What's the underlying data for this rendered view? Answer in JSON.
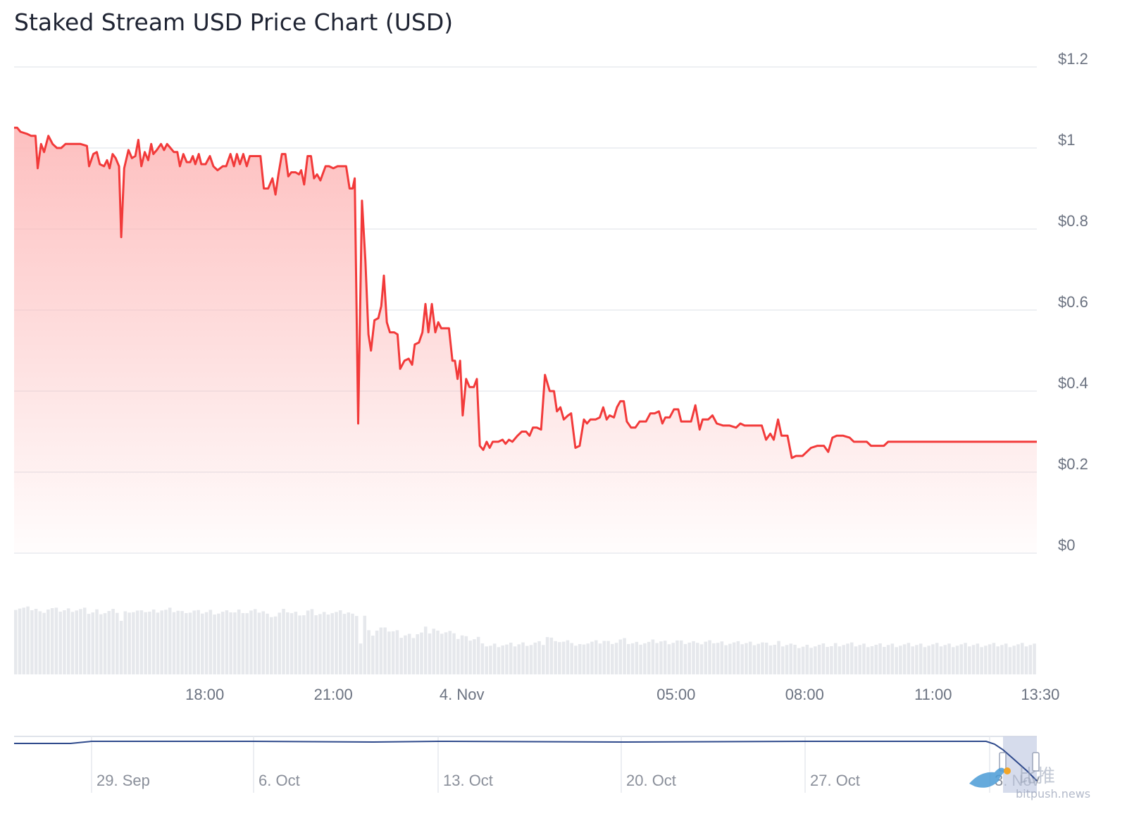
{
  "colors": {
    "price_line": "#f23a3a",
    "area_top": "#fdb8b8",
    "grid": "#e8ebef",
    "volume": "#e6e8ec",
    "navigator_line": "#2f4a8c",
    "navigator_mask": "#c5cde4",
    "axis_text": "#6b7280"
  },
  "chart_data": {
    "type": "line",
    "title": "Staked Stream USD Price Chart (USD)",
    "y_ticks": [
      "$1.2",
      "$1",
      "$0.8",
      "$0.6",
      "$0.4",
      "$0.2",
      "$0"
    ],
    "ylim": [
      0,
      1.2
    ],
    "x_ticks": [
      "18:00",
      "21:00",
      "4. Nov",
      "05:00",
      "08:00",
      "11:00",
      "13:30"
    ],
    "x_tick_hours": [
      18,
      21,
      24,
      29,
      32,
      35,
      37.5
    ],
    "xlim_hours": [
      13.55,
      37.42
    ],
    "series": [
      {
        "values": [
          [
            13.55,
            1.05
          ],
          [
            13.62,
            1.05
          ],
          [
            13.7,
            1.04
          ],
          [
            13.85,
            1.035
          ],
          [
            13.95,
            1.03
          ],
          [
            14.05,
            1.03
          ],
          [
            14.1,
            0.95
          ],
          [
            14.18,
            1.01
          ],
          [
            14.25,
            0.99
          ],
          [
            14.35,
            1.03
          ],
          [
            14.45,
            1.01
          ],
          [
            14.55,
            1.0
          ],
          [
            14.65,
            1.0
          ],
          [
            14.75,
            1.01
          ],
          [
            14.9,
            1.01
          ],
          [
            15.1,
            1.01
          ],
          [
            15.25,
            1.005
          ],
          [
            15.3,
            0.955
          ],
          [
            15.4,
            0.985
          ],
          [
            15.48,
            0.99
          ],
          [
            15.55,
            0.96
          ],
          [
            15.65,
            0.955
          ],
          [
            15.72,
            0.97
          ],
          [
            15.78,
            0.95
          ],
          [
            15.85,
            0.985
          ],
          [
            15.92,
            0.975
          ],
          [
            16.0,
            0.955
          ],
          [
            16.05,
            0.78
          ],
          [
            16.12,
            0.95
          ],
          [
            16.22,
            0.995
          ],
          [
            16.3,
            0.975
          ],
          [
            16.38,
            0.98
          ],
          [
            16.45,
            1.02
          ],
          [
            16.52,
            0.955
          ],
          [
            16.6,
            0.99
          ],
          [
            16.68,
            0.97
          ],
          [
            16.75,
            1.01
          ],
          [
            16.8,
            0.985
          ],
          [
            16.88,
            0.995
          ],
          [
            16.98,
            1.01
          ],
          [
            17.05,
            0.995
          ],
          [
            17.12,
            1.01
          ],
          [
            17.2,
            1.0
          ],
          [
            17.28,
            0.99
          ],
          [
            17.36,
            0.99
          ],
          [
            17.42,
            0.955
          ],
          [
            17.5,
            0.985
          ],
          [
            17.58,
            0.965
          ],
          [
            17.66,
            0.965
          ],
          [
            17.72,
            0.98
          ],
          [
            17.78,
            0.96
          ],
          [
            17.86,
            0.985
          ],
          [
            17.92,
            0.96
          ],
          [
            18.02,
            0.96
          ],
          [
            18.12,
            0.98
          ],
          [
            18.2,
            0.955
          ],
          [
            18.3,
            0.945
          ],
          [
            18.42,
            0.955
          ],
          [
            18.5,
            0.955
          ],
          [
            18.6,
            0.985
          ],
          [
            18.68,
            0.955
          ],
          [
            18.75,
            0.985
          ],
          [
            18.82,
            0.96
          ],
          [
            18.9,
            0.985
          ],
          [
            18.98,
            0.955
          ],
          [
            19.05,
            0.98
          ],
          [
            19.15,
            0.98
          ],
          [
            19.3,
            0.98
          ],
          [
            19.38,
            0.9
          ],
          [
            19.48,
            0.9
          ],
          [
            19.58,
            0.925
          ],
          [
            19.65,
            0.885
          ],
          [
            19.72,
            0.935
          ],
          [
            19.8,
            0.985
          ],
          [
            19.88,
            0.985
          ],
          [
            19.95,
            0.93
          ],
          [
            20.02,
            0.94
          ],
          [
            20.12,
            0.94
          ],
          [
            20.2,
            0.935
          ],
          [
            20.25,
            0.945
          ],
          [
            20.32,
            0.91
          ],
          [
            20.4,
            0.98
          ],
          [
            20.48,
            0.98
          ],
          [
            20.55,
            0.925
          ],
          [
            20.62,
            0.935
          ],
          [
            20.7,
            0.92
          ],
          [
            20.75,
            0.935
          ],
          [
            20.82,
            0.955
          ],
          [
            20.9,
            0.955
          ],
          [
            21.0,
            0.95
          ],
          [
            21.1,
            0.955
          ],
          [
            21.2,
            0.955
          ],
          [
            21.3,
            0.955
          ],
          [
            21.38,
            0.9
          ],
          [
            21.45,
            0.9
          ],
          [
            21.5,
            0.925
          ],
          [
            21.58,
            0.32
          ],
          [
            21.67,
            0.87
          ],
          [
            21.75,
            0.72
          ],
          [
            21.82,
            0.54
          ],
          [
            21.88,
            0.5
          ],
          [
            21.96,
            0.575
          ],
          [
            22.05,
            0.58
          ],
          [
            22.12,
            0.61
          ],
          [
            22.18,
            0.685
          ],
          [
            22.25,
            0.57
          ],
          [
            22.32,
            0.545
          ],
          [
            22.42,
            0.545
          ],
          [
            22.5,
            0.54
          ],
          [
            22.56,
            0.455
          ],
          [
            22.66,
            0.475
          ],
          [
            22.76,
            0.48
          ],
          [
            22.84,
            0.465
          ],
          [
            22.9,
            0.515
          ],
          [
            23.0,
            0.52
          ],
          [
            23.08,
            0.545
          ],
          [
            23.15,
            0.615
          ],
          [
            23.22,
            0.545
          ],
          [
            23.3,
            0.615
          ],
          [
            23.38,
            0.545
          ],
          [
            23.45,
            0.57
          ],
          [
            23.52,
            0.555
          ],
          [
            23.62,
            0.555
          ],
          [
            23.7,
            0.555
          ],
          [
            23.78,
            0.475
          ],
          [
            23.84,
            0.475
          ],
          [
            23.9,
            0.43
          ],
          [
            23.96,
            0.475
          ],
          [
            24.02,
            0.34
          ],
          [
            24.1,
            0.43
          ],
          [
            24.18,
            0.41
          ],
          [
            24.28,
            0.41
          ],
          [
            24.35,
            0.43
          ],
          [
            24.42,
            0.265
          ],
          [
            24.5,
            0.255
          ],
          [
            24.58,
            0.275
          ],
          [
            24.65,
            0.26
          ],
          [
            24.72,
            0.275
          ],
          [
            24.85,
            0.275
          ],
          [
            24.95,
            0.28
          ],
          [
            25.02,
            0.27
          ],
          [
            25.1,
            0.28
          ],
          [
            25.18,
            0.275
          ],
          [
            25.3,
            0.29
          ],
          [
            25.4,
            0.3
          ],
          [
            25.5,
            0.3
          ],
          [
            25.58,
            0.29
          ],
          [
            25.66,
            0.31
          ],
          [
            25.75,
            0.31
          ],
          [
            25.85,
            0.305
          ],
          [
            25.94,
            0.44
          ],
          [
            26.05,
            0.4
          ],
          [
            26.15,
            0.4
          ],
          [
            26.22,
            0.35
          ],
          [
            26.3,
            0.36
          ],
          [
            26.38,
            0.33
          ],
          [
            26.48,
            0.34
          ],
          [
            26.55,
            0.345
          ],
          [
            26.65,
            0.26
          ],
          [
            26.75,
            0.265
          ],
          [
            26.85,
            0.33
          ],
          [
            26.92,
            0.32
          ],
          [
            27.0,
            0.33
          ],
          [
            27.12,
            0.33
          ],
          [
            27.22,
            0.335
          ],
          [
            27.3,
            0.36
          ],
          [
            27.38,
            0.33
          ],
          [
            27.45,
            0.34
          ],
          [
            27.55,
            0.335
          ],
          [
            27.62,
            0.36
          ],
          [
            27.7,
            0.375
          ],
          [
            27.78,
            0.375
          ],
          [
            27.85,
            0.325
          ],
          [
            27.95,
            0.31
          ],
          [
            28.05,
            0.31
          ],
          [
            28.15,
            0.325
          ],
          [
            28.3,
            0.325
          ],
          [
            28.4,
            0.345
          ],
          [
            28.5,
            0.345
          ],
          [
            28.6,
            0.35
          ],
          [
            28.68,
            0.32
          ],
          [
            28.75,
            0.335
          ],
          [
            28.85,
            0.335
          ],
          [
            28.95,
            0.355
          ],
          [
            29.05,
            0.355
          ],
          [
            29.12,
            0.325
          ],
          [
            29.2,
            0.325
          ],
          [
            29.35,
            0.325
          ],
          [
            29.45,
            0.365
          ],
          [
            29.55,
            0.305
          ],
          [
            29.62,
            0.33
          ],
          [
            29.75,
            0.33
          ],
          [
            29.85,
            0.34
          ],
          [
            29.95,
            0.32
          ],
          [
            30.1,
            0.315
          ],
          [
            30.25,
            0.315
          ],
          [
            30.4,
            0.31
          ],
          [
            30.5,
            0.32
          ],
          [
            30.6,
            0.315
          ],
          [
            30.75,
            0.315
          ],
          [
            30.9,
            0.315
          ],
          [
            31.0,
            0.315
          ],
          [
            31.1,
            0.28
          ],
          [
            31.2,
            0.295
          ],
          [
            31.28,
            0.28
          ],
          [
            31.38,
            0.33
          ],
          [
            31.46,
            0.29
          ],
          [
            31.6,
            0.29
          ],
          [
            31.7,
            0.235
          ],
          [
            31.8,
            0.24
          ],
          [
            31.95,
            0.24
          ],
          [
            32.05,
            0.25
          ],
          [
            32.15,
            0.26
          ],
          [
            32.3,
            0.265
          ],
          [
            32.45,
            0.265
          ],
          [
            32.55,
            0.25
          ],
          [
            32.65,
            0.285
          ],
          [
            32.75,
            0.29
          ],
          [
            32.9,
            0.29
          ],
          [
            33.05,
            0.285
          ],
          [
            33.15,
            0.275
          ],
          [
            33.3,
            0.275
          ],
          [
            33.45,
            0.275
          ],
          [
            33.55,
            0.265
          ],
          [
            33.7,
            0.265
          ],
          [
            33.85,
            0.265
          ],
          [
            33.95,
            0.275
          ],
          [
            34.05,
            0.275
          ],
          [
            37.42,
            0.275
          ]
        ]
      }
    ]
  },
  "navigator": {
    "ticks": [
      "29. Sep",
      "6. Oct",
      "13. Oct",
      "20. Oct",
      "27. Oct",
      "3. Nov"
    ]
  },
  "watermark": {
    "site": "bitpush.news",
    "cn": "比推"
  }
}
